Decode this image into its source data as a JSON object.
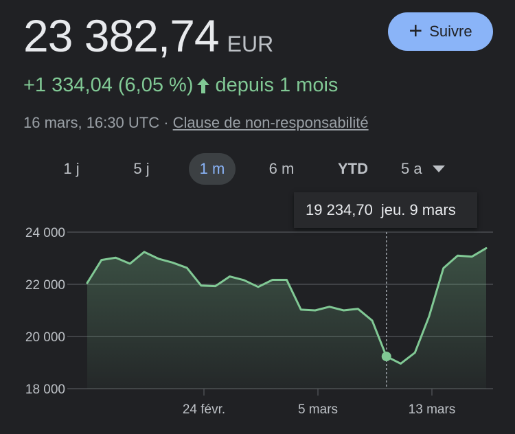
{
  "quote": {
    "price": "23 382,74",
    "currency": "EUR",
    "change": "+1 334,04 (6,05 %)",
    "period": "depuis 1 mois",
    "timestamp": "16 mars, 16:30 UTC · ",
    "disclaimer": "Clause de non-responsabilité"
  },
  "follow_button": {
    "label": "Suivre"
  },
  "ranges": [
    {
      "label": "1 j",
      "active": false
    },
    {
      "label": "5 j",
      "active": false
    },
    {
      "label": "1 m",
      "active": true
    },
    {
      "label": "6 m",
      "active": false
    },
    {
      "label": "YTD",
      "active": false
    },
    {
      "label": "5 a",
      "active": false
    }
  ],
  "tooltip": {
    "value": "19 234,70",
    "date": "jeu. 9 mars"
  },
  "colors": {
    "background": "#202124",
    "line": "#81c995",
    "accent": "#8ab4f8"
  },
  "chart_data": {
    "type": "area",
    "ylim": [
      18000,
      24000
    ],
    "yticks": [
      "24 000",
      "22 000",
      "20 000",
      "18 000"
    ],
    "ytick_values": [
      24000,
      22000,
      20000,
      18000
    ],
    "xticks": [
      "24 févr.",
      "5 mars",
      "13 mars"
    ],
    "grid": true,
    "series": [
      {
        "values": [
          22050,
          22930,
          23020,
          22790,
          23240,
          22980,
          22830,
          22630,
          21950,
          21930,
          22300,
          22160,
          21900,
          22170,
          22170,
          21030,
          21000,
          21140,
          21000,
          21060,
          20610,
          19234.7,
          18960,
          19380,
          20780,
          22620,
          23100,
          23060,
          23382.74
        ]
      }
    ],
    "highlight_index": 21
  }
}
